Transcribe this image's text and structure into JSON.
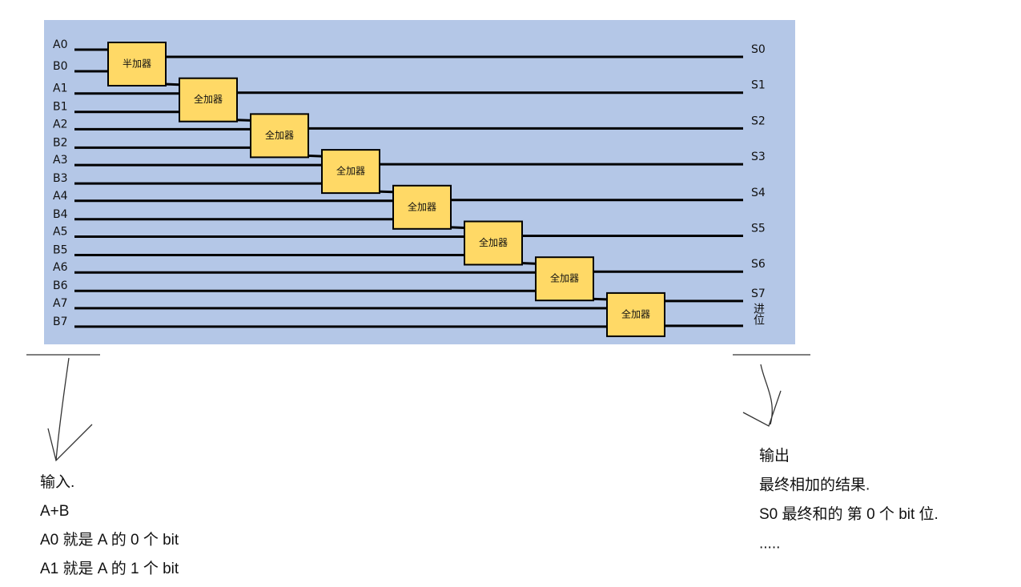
{
  "inputs": [
    "A0",
    "B0",
    "A1",
    "B1",
    "A2",
    "B2",
    "A3",
    "B3",
    "A4",
    "B4",
    "A5",
    "B5",
    "A6",
    "B6",
    "A7",
    "B7"
  ],
  "adders": [
    "半加器",
    "全加器",
    "全加器",
    "全加器",
    "全加器",
    "全加器",
    "全加器",
    "全加器"
  ],
  "outputs": [
    "S0",
    "S1",
    "S2",
    "S3",
    "S4",
    "S5",
    "S6",
    "S7",
    "进位"
  ],
  "notes": {
    "input": [
      "输入.",
      "A+B",
      "A0 就是 A 的 0 个 bit",
      "A1 就是 A 的 1 个 bit"
    ],
    "output": [
      "输出",
      "最终相加的结果.",
      "S0 最终和的 第 0 个 bit 位.",
      "....."
    ]
  }
}
